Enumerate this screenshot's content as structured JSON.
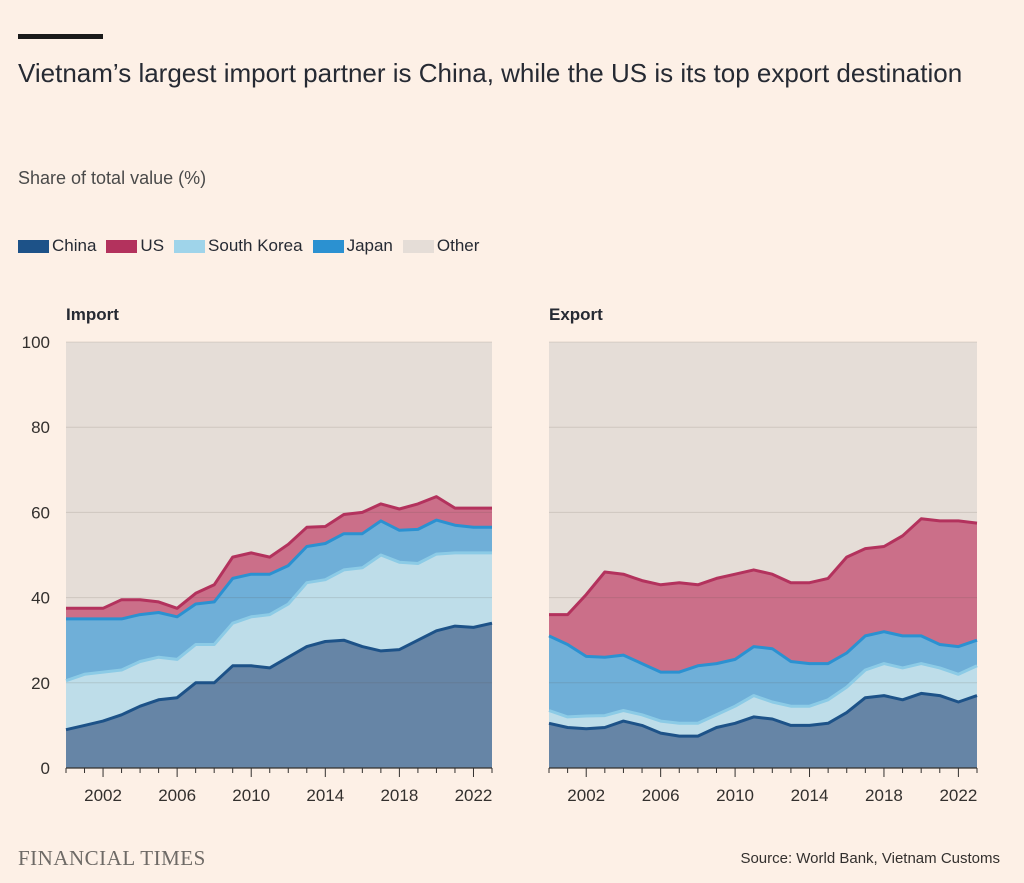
{
  "header": {
    "title": "Vietnam’s largest import partner is China, while the US is its top export destination",
    "subtitle": "Share of total value (%)"
  },
  "legend": [
    {
      "label": "China",
      "color": "#1d5288"
    },
    {
      "label": "US",
      "color": "#b3325d"
    },
    {
      "label": "South Korea",
      "color": "#9fd4ea"
    },
    {
      "label": "Japan",
      "color": "#2b91d1"
    },
    {
      "label": "Other",
      "color": "#e5ddd7"
    }
  ],
  "footer": {
    "logo": "FINANCIAL TIMES",
    "source": "Source: World Bank, Vietnam Customs"
  },
  "chart_data": [
    {
      "type": "area",
      "stacked": true,
      "title": "Import",
      "ylim": [
        0,
        100
      ],
      "yticks": [
        0,
        20,
        40,
        60,
        80,
        100
      ],
      "xticks": [
        2002,
        2006,
        2010,
        2014,
        2018,
        2022
      ],
      "x": [
        2000,
        2001,
        2002,
        2003,
        2004,
        2005,
        2006,
        2007,
        2008,
        2009,
        2010,
        2011,
        2012,
        2013,
        2014,
        2015,
        2016,
        2017,
        2018,
        2019,
        2020,
        2021,
        2022,
        2023
      ],
      "series": [
        {
          "name": "China",
          "color": "#1d5288",
          "values": [
            9,
            10,
            11,
            12.5,
            14.5,
            16,
            16.5,
            20,
            20,
            24,
            24,
            23.5,
            26,
            28.5,
            29.7,
            30,
            28.5,
            27.5,
            27.8,
            30,
            32.2,
            33.3,
            33,
            34
          ]
        },
        {
          "name": "South Korea",
          "color": "#9fd4ea",
          "values": [
            11.5,
            12,
            11.5,
            10.5,
            10.5,
            10,
            9,
            9,
            9,
            10,
            11.5,
            12.5,
            12.5,
            15,
            14.5,
            16.5,
            18.5,
            22.5,
            20.5,
            18,
            18,
            17.2,
            17.5,
            16.5
          ]
        },
        {
          "name": "Japan",
          "color": "#2b91d1",
          "values": [
            14.5,
            13,
            12.5,
            12,
            11,
            10.5,
            10,
            9.5,
            10,
            10.5,
            10,
            9.5,
            9,
            8.5,
            8.5,
            8.5,
            8,
            8,
            7.5,
            8,
            8,
            6.5,
            6,
            6
          ]
        },
        {
          "name": "US",
          "color": "#b3325d",
          "values": [
            2.5,
            2.5,
            2.5,
            4.5,
            3.5,
            2.5,
            2,
            2.5,
            4,
            5,
            5,
            4,
            5,
            4.5,
            4,
            4.5,
            5,
            4,
            5,
            6,
            5.5,
            4,
            4.5,
            4.5
          ]
        },
        {
          "name": "Other",
          "color": "#e5ddd7",
          "values": [
            62.5,
            62.5,
            62.5,
            60.5,
            60.5,
            61,
            62.5,
            59,
            57,
            50.5,
            49.5,
            50.5,
            47.5,
            43.5,
            43.3,
            40.5,
            40,
            38,
            39.2,
            38,
            36.3,
            39,
            39,
            39
          ]
        }
      ]
    },
    {
      "type": "area",
      "stacked": true,
      "title": "Export",
      "ylim": [
        0,
        100
      ],
      "yticks": [
        0,
        20,
        40,
        60,
        80,
        100
      ],
      "xticks": [
        2002,
        2006,
        2010,
        2014,
        2018,
        2022
      ],
      "x": [
        2000,
        2001,
        2002,
        2003,
        2004,
        2005,
        2006,
        2007,
        2008,
        2009,
        2010,
        2011,
        2012,
        2013,
        2014,
        2015,
        2016,
        2017,
        2018,
        2019,
        2020,
        2021,
        2022,
        2023
      ],
      "series": [
        {
          "name": "China",
          "color": "#1d5288",
          "values": [
            10.5,
            9.5,
            9.2,
            9.5,
            11,
            10,
            8.2,
            7.5,
            7.5,
            9.5,
            10.5,
            12,
            11.5,
            10,
            10,
            10.5,
            13,
            16.5,
            17,
            16,
            17.5,
            17,
            15.5,
            17
          ]
        },
        {
          "name": "South Korea",
          "color": "#9fd4ea",
          "values": [
            3,
            2.5,
            3,
            2.8,
            2.5,
            2.5,
            2.8,
            3,
            3,
            3,
            4,
            5,
            4,
            4.5,
            4.5,
            5.5,
            6,
            6.5,
            7.5,
            7.5,
            7,
            6.5,
            6.5,
            7
          ]
        },
        {
          "name": "Japan",
          "color": "#2b91d1",
          "values": [
            17.5,
            17,
            14,
            13.7,
            13,
            12,
            11.5,
            12,
            13.5,
            12,
            11,
            11.5,
            12.5,
            10.5,
            10,
            8.5,
            8,
            8,
            7.5,
            7.5,
            6.5,
            5.5,
            6.5,
            6
          ]
        },
        {
          "name": "US",
          "color": "#b3325d",
          "values": [
            5,
            7,
            14.5,
            20,
            19,
            19.5,
            20.5,
            21,
            19,
            20,
            20,
            18,
            17.5,
            18.5,
            19,
            20,
            22.5,
            20.5,
            20,
            23.5,
            27.5,
            29,
            29.5,
            27.5
          ]
        },
        {
          "name": "Other",
          "color": "#e5ddd7",
          "values": [
            64,
            64,
            59.3,
            54,
            54.5,
            56,
            57,
            56.5,
            57,
            55.5,
            54.5,
            53.5,
            54.5,
            56.5,
            56.5,
            55.5,
            50.5,
            48.5,
            48,
            45.5,
            41.5,
            42,
            42,
            42.5
          ]
        }
      ]
    }
  ]
}
